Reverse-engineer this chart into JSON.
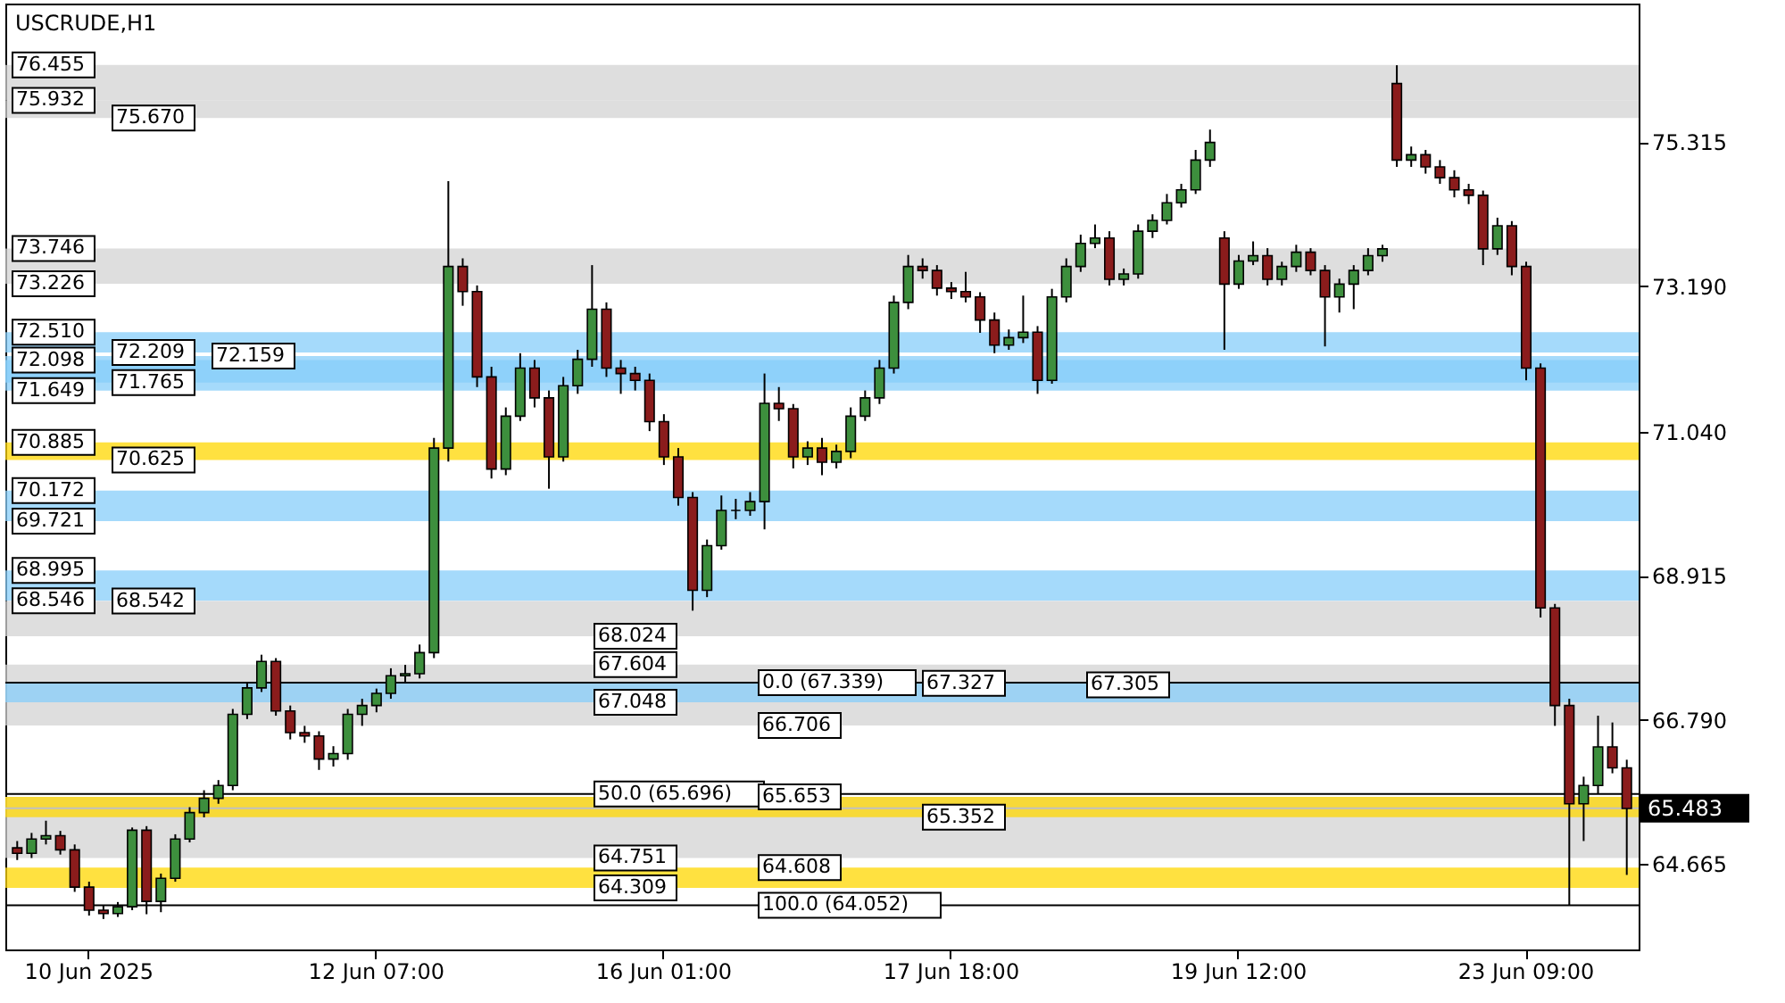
{
  "chart_data": {
    "type": "candlestick",
    "title": "USCRUDE,H1",
    "categories": [
      null,
      null,
      null,
      null,
      null,
      "10 Jun 2025",
      null,
      null,
      null,
      null,
      null,
      null,
      null,
      null,
      null,
      null,
      null,
      null,
      null,
      null,
      null,
      null,
      null,
      null,
      null,
      "12 Jun 07:00",
      null,
      null,
      null,
      null,
      null,
      null,
      null,
      null,
      null,
      null,
      null,
      null,
      null,
      null,
      null,
      null,
      null,
      null,
      null,
      "16 Jun 01:00",
      null,
      null,
      null,
      null,
      null,
      null,
      null,
      null,
      null,
      null,
      null,
      null,
      null,
      null,
      null,
      null,
      null,
      null,
      null,
      "17 Jun 18:00",
      null,
      null,
      null,
      null,
      null,
      null,
      null,
      null,
      null,
      null,
      null,
      null,
      null,
      null,
      null,
      null,
      null,
      null,
      null,
      "19 Jun 12:00",
      null,
      null,
      null,
      null,
      null,
      null,
      null,
      null,
      null,
      null,
      null,
      null,
      null,
      null,
      null,
      null,
      null,
      null,
      null,
      "23 Jun 09:00",
      null,
      null,
      null,
      null,
      null,
      null,
      null
    ],
    "ohlc": [
      [
        64.9,
        65.0,
        64.72,
        64.82
      ],
      [
        64.82,
        65.12,
        64.75,
        65.03
      ],
      [
        65.03,
        65.3,
        64.95,
        65.08
      ],
      [
        65.08,
        65.15,
        64.8,
        64.87
      ],
      [
        64.87,
        64.95,
        64.25,
        64.32
      ],
      [
        64.32,
        64.4,
        63.9,
        63.98
      ],
      [
        63.98,
        64.05,
        63.85,
        63.93
      ],
      [
        63.93,
        64.1,
        63.88,
        64.03
      ],
      [
        64.03,
        65.2,
        63.98,
        65.16
      ],
      [
        65.16,
        65.22,
        63.92,
        64.11
      ],
      [
        64.11,
        64.52,
        63.95,
        64.45
      ],
      [
        64.45,
        65.1,
        64.4,
        65.03
      ],
      [
        65.03,
        65.5,
        64.98,
        65.42
      ],
      [
        65.42,
        65.75,
        65.35,
        65.63
      ],
      [
        65.63,
        65.9,
        65.55,
        65.82
      ],
      [
        65.82,
        66.95,
        65.75,
        66.87
      ],
      [
        66.87,
        67.35,
        66.8,
        67.26
      ],
      [
        67.26,
        67.75,
        67.2,
        67.65
      ],
      [
        67.65,
        67.7,
        66.85,
        66.92
      ],
      [
        66.92,
        67.0,
        66.5,
        66.6
      ],
      [
        66.6,
        66.7,
        66.45,
        66.55
      ],
      [
        66.55,
        66.62,
        66.05,
        66.21
      ],
      [
        66.21,
        66.4,
        66.1,
        66.29
      ],
      [
        66.29,
        66.95,
        66.2,
        66.87
      ],
      [
        66.87,
        67.1,
        66.7,
        67.0
      ],
      [
        67.0,
        67.25,
        66.9,
        67.18
      ],
      [
        67.18,
        67.55,
        67.1,
        67.44
      ],
      [
        67.44,
        67.6,
        67.35,
        67.47
      ],
      [
        67.47,
        67.9,
        67.4,
        67.78
      ],
      [
        67.78,
        70.95,
        67.7,
        70.8
      ],
      [
        70.8,
        74.74,
        70.6,
        73.48
      ],
      [
        73.48,
        73.6,
        72.9,
        73.11
      ],
      [
        73.11,
        73.2,
        71.7,
        71.85
      ],
      [
        71.85,
        72.0,
        70.35,
        70.49
      ],
      [
        70.49,
        71.4,
        70.4,
        71.27
      ],
      [
        71.27,
        72.2,
        71.2,
        71.98
      ],
      [
        71.98,
        72.1,
        71.4,
        71.54
      ],
      [
        71.54,
        71.65,
        70.2,
        70.67
      ],
      [
        70.67,
        71.85,
        70.6,
        71.72
      ],
      [
        71.72,
        72.25,
        71.6,
        72.11
      ],
      [
        72.11,
        73.5,
        72.0,
        72.85
      ],
      [
        72.85,
        72.95,
        71.85,
        71.98
      ],
      [
        71.98,
        72.1,
        71.6,
        71.9
      ],
      [
        71.9,
        72.0,
        71.65,
        71.8
      ],
      [
        71.8,
        71.9,
        71.05,
        71.19
      ],
      [
        71.19,
        71.3,
        70.55,
        70.67
      ],
      [
        70.67,
        70.8,
        69.95,
        70.07
      ],
      [
        70.07,
        70.15,
        68.4,
        68.7
      ],
      [
        68.7,
        69.45,
        68.6,
        69.36
      ],
      [
        69.36,
        70.1,
        69.3,
        69.88
      ],
      [
        69.88,
        70.05,
        69.75,
        69.88
      ],
      [
        69.88,
        70.15,
        69.8,
        70.01
      ],
      [
        70.01,
        71.9,
        69.6,
        71.46
      ],
      [
        71.46,
        71.7,
        71.2,
        71.38
      ],
      [
        71.38,
        71.45,
        70.5,
        70.67
      ],
      [
        70.67,
        70.9,
        70.55,
        70.8
      ],
      [
        70.8,
        70.95,
        70.4,
        70.59
      ],
      [
        70.59,
        70.85,
        70.5,
        70.75
      ],
      [
        70.75,
        71.4,
        70.65,
        71.27
      ],
      [
        71.27,
        71.65,
        71.2,
        71.54
      ],
      [
        71.54,
        72.1,
        71.45,
        71.98
      ],
      [
        71.98,
        73.05,
        71.9,
        72.95
      ],
      [
        72.95,
        73.65,
        72.85,
        73.48
      ],
      [
        73.48,
        73.6,
        73.3,
        73.42
      ],
      [
        73.42,
        73.5,
        73.05,
        73.16
      ],
      [
        73.16,
        73.25,
        73.0,
        73.11
      ],
      [
        73.11,
        73.4,
        72.95,
        73.03
      ],
      [
        73.03,
        73.1,
        72.5,
        72.69
      ],
      [
        72.69,
        72.8,
        72.2,
        72.32
      ],
      [
        72.32,
        72.55,
        72.25,
        72.43
      ],
      [
        72.43,
        73.05,
        72.35,
        72.51
      ],
      [
        72.51,
        72.6,
        71.6,
        71.8
      ],
      [
        71.8,
        73.15,
        71.75,
        73.03
      ],
      [
        73.03,
        73.6,
        72.95,
        73.48
      ],
      [
        73.48,
        73.95,
        73.4,
        73.82
      ],
      [
        73.82,
        74.1,
        73.75,
        73.9
      ],
      [
        73.9,
        74.0,
        73.2,
        73.29
      ],
      [
        73.29,
        73.45,
        73.2,
        73.37
      ],
      [
        73.37,
        74.1,
        73.3,
        74.0
      ],
      [
        74.0,
        74.25,
        73.9,
        74.16
      ],
      [
        74.16,
        74.55,
        74.1,
        74.42
      ],
      [
        74.42,
        74.7,
        74.35,
        74.61
      ],
      [
        74.61,
        75.2,
        74.55,
        75.05
      ],
      [
        75.05,
        75.5,
        74.95,
        75.31
      ],
      [
        73.9,
        74.0,
        72.25,
        73.22
      ],
      [
        73.22,
        73.65,
        73.15,
        73.56
      ],
      [
        73.56,
        73.85,
        73.5,
        73.64
      ],
      [
        73.64,
        73.75,
        73.2,
        73.29
      ],
      [
        73.29,
        73.55,
        73.2,
        73.48
      ],
      [
        73.48,
        73.8,
        73.4,
        73.69
      ],
      [
        73.69,
        73.75,
        73.35,
        73.42
      ],
      [
        73.42,
        73.5,
        72.3,
        73.03
      ],
      [
        73.03,
        73.3,
        72.8,
        73.22
      ],
      [
        73.22,
        73.5,
        72.85,
        73.42
      ],
      [
        73.42,
        73.75,
        73.35,
        73.64
      ],
      [
        73.64,
        73.8,
        73.55,
        73.74
      ],
      [
        76.18,
        76.45,
        74.95,
        75.05
      ],
      [
        75.05,
        75.25,
        74.95,
        75.13
      ],
      [
        75.13,
        75.2,
        74.85,
        74.95
      ],
      [
        74.95,
        75.05,
        74.7,
        74.79
      ],
      [
        74.79,
        74.9,
        74.5,
        74.61
      ],
      [
        74.61,
        74.7,
        74.4,
        74.53
      ],
      [
        74.53,
        74.6,
        73.5,
        73.74
      ],
      [
        73.74,
        74.2,
        73.65,
        74.08
      ],
      [
        74.08,
        74.15,
        73.35,
        73.48
      ],
      [
        73.48,
        73.55,
        71.8,
        71.98
      ],
      [
        71.98,
        72.05,
        68.3,
        68.44
      ],
      [
        68.44,
        68.5,
        66.7,
        67.0
      ],
      [
        67.0,
        67.1,
        64.05,
        65.55
      ],
      [
        65.55,
        65.95,
        65.0,
        65.82
      ],
      [
        65.82,
        66.85,
        65.7,
        66.39
      ],
      [
        66.39,
        66.75,
        66.0,
        66.08
      ],
      [
        66.08,
        66.2,
        64.5,
        65.48
      ]
    ],
    "ylim": [
      63.4,
      77.36
    ],
    "yticks": [
      75.315,
      {
        "value": 73.19,
        "label": "73.190"
      },
      {
        "value": 71.04,
        "label": "71.040"
      },
      68.915,
      {
        "value": 66.79,
        "label": "66.790"
      },
      64.665
    ],
    "ref_lines": [
      {
        "axis": "y",
        "value": 65.483,
        "label": "65.483",
        "color": "#c0c0c0"
      },
      {
        "axis": "y",
        "value": 67.339,
        "label": null,
        "color": "#000000"
      },
      {
        "axis": "y",
        "value": 65.696,
        "label": null,
        "color": "#000000"
      },
      {
        "axis": "y",
        "value": 64.052,
        "label": null,
        "color": "#000000"
      }
    ],
    "bands": [
      {
        "axis": "y",
        "from": 75.932,
        "to": 76.455,
        "label": null,
        "color": "#d3d3d3"
      },
      {
        "axis": "y",
        "from": 75.67,
        "to": 75.932,
        "label": null,
        "color": "#d3d3d3"
      },
      {
        "axis": "y",
        "from": 73.226,
        "to": 73.746,
        "label": null,
        "color": "#d3d3d3"
      },
      {
        "axis": "y",
        "from": 72.209,
        "to": 72.51,
        "label": null,
        "color": "#87cefa"
      },
      {
        "axis": "y",
        "from": 71.765,
        "to": 72.159,
        "label": null,
        "color": "#87cefa"
      },
      {
        "axis": "y",
        "from": 71.649,
        "to": 72.098,
        "label": null,
        "color": "#87cefa"
      },
      {
        "axis": "y",
        "from": 70.625,
        "to": 70.885,
        "label": null,
        "color": "#ffd700"
      },
      {
        "axis": "y",
        "from": 69.721,
        "to": 70.172,
        "label": null,
        "color": "#87cefa"
      },
      {
        "axis": "y",
        "from": 68.546,
        "to": 68.995,
        "label": null,
        "color": "#87cefa"
      },
      {
        "axis": "y",
        "from": 68.024,
        "to": 68.542,
        "label": null,
        "color": "#d3d3d3"
      },
      {
        "axis": "y",
        "from": 66.706,
        "to": 67.604,
        "label": null,
        "color": "#d3d3d3"
      },
      {
        "axis": "y",
        "from": 67.048,
        "to": 67.327,
        "label": null,
        "color": "#87cefa"
      },
      {
        "axis": "y",
        "from": 64.751,
        "to": 65.653,
        "label": null,
        "color": "#d3d3d3"
      },
      {
        "axis": "y",
        "from": 65.352,
        "to": 65.653,
        "label": null,
        "color": "#ffd700"
      },
      {
        "axis": "y",
        "from": 64.309,
        "to": 64.608,
        "label": null,
        "color": "#ffd700"
      }
    ],
    "annotations": [
      {
        "text": "76.455",
        "y": 76.455
      },
      {
        "text": "75.932",
        "y": 75.932
      },
      {
        "text": "75.670",
        "y": 75.67
      },
      {
        "text": "73.746",
        "y": 73.746
      },
      {
        "text": "73.226",
        "y": 73.226
      },
      {
        "text": "72.510",
        "y": 72.51
      },
      {
        "text": "72.209",
        "y": 72.209
      },
      {
        "text": "72.159",
        "y": 72.159
      },
      {
        "text": "72.098",
        "y": 72.098
      },
      {
        "text": "71.765",
        "y": 71.765
      },
      {
        "text": "71.649",
        "y": 71.649
      },
      {
        "text": "70.885",
        "y": 70.885
      },
      {
        "text": "70.625",
        "y": 70.625
      },
      {
        "text": "70.172",
        "y": 70.172
      },
      {
        "text": "69.721",
        "y": 69.721
      },
      {
        "text": "68.995",
        "y": 68.995
      },
      {
        "text": "68.546",
        "y": 68.546
      },
      {
        "text": "68.542",
        "y": 68.542
      },
      {
        "text": "68.024",
        "y": 68.024
      },
      {
        "text": "67.604",
        "y": 67.604
      },
      {
        "text": "0.0 (67.339)",
        "y": 67.339
      },
      {
        "text": "67.327",
        "y": 67.327
      },
      {
        "text": "67.305",
        "y": 67.305
      },
      {
        "text": "67.048",
        "y": 67.048
      },
      {
        "text": "66.706",
        "y": 66.706
      },
      {
        "text": "50.0 (65.696)",
        "y": 65.696
      },
      {
        "text": "65.653",
        "y": 65.653
      },
      {
        "text": "65.352",
        "y": 65.352
      },
      {
        "text": "64.751",
        "y": 64.751
      },
      {
        "text": "64.608",
        "y": 64.608
      },
      {
        "text": "64.309",
        "y": 64.309
      },
      {
        "text": "100.0 (64.052)",
        "y": 64.052
      }
    ]
  }
}
